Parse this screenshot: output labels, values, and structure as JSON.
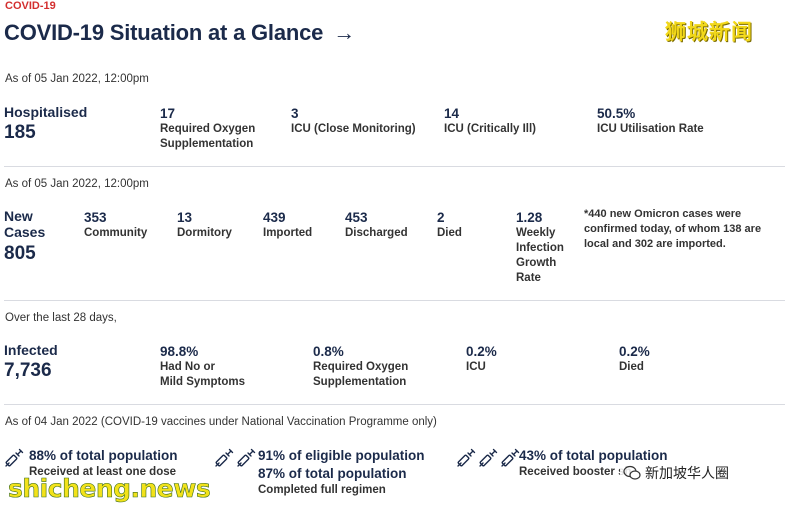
{
  "header": {
    "tag": "COVID-19",
    "title": "COVID-19 Situation at a Glance",
    "arrow": "→",
    "watermark_top": "狮城新闻"
  },
  "hospitalised": {
    "asof": "As of 05 Jan 2022, 12:00pm",
    "label": "Hospitalised",
    "total": "185",
    "stats": [
      {
        "value": "17",
        "label1": "Required Oxygen",
        "label2": "Supplementation"
      },
      {
        "value": "3",
        "label1": "ICU (Close Monitoring)",
        "label2": ""
      },
      {
        "value": "14",
        "label1": "ICU (Critically Ill)",
        "label2": ""
      },
      {
        "value": "50.5%",
        "label1": "ICU Utilisation Rate",
        "label2": ""
      }
    ]
  },
  "new_cases": {
    "asof": "As of 05 Jan 2022, 12:00pm",
    "label1": "New",
    "label2": "Cases",
    "total": "805",
    "stats": [
      {
        "value": "353",
        "label": "Community"
      },
      {
        "value": "13",
        "label": "Dormitory"
      },
      {
        "value": "439",
        "label": "Imported"
      },
      {
        "value": "453",
        "label": "Discharged"
      },
      {
        "value": "2",
        "label": "Died"
      }
    ],
    "growth": {
      "value": "1.28",
      "l1": "Weekly",
      "l2": "Infection",
      "l3": "Growth",
      "l4": "Rate"
    },
    "note": "*440 new Omicron cases were confirmed today, of whom 138 are local and 302 are imported."
  },
  "infected": {
    "asof": "Over the last 28 days,",
    "label": "Infected",
    "total": "7,736",
    "stats": [
      {
        "value": "98.8%",
        "label1": "Had No or",
        "label2": "Mild Symptoms"
      },
      {
        "value": "0.8%",
        "label1": "Required Oxygen",
        "label2": "Supplementation"
      },
      {
        "value": "0.2%",
        "label1": "ICU",
        "label2": ""
      },
      {
        "value": "0.2%",
        "label1": "Died",
        "label2": ""
      }
    ]
  },
  "vaccination": {
    "asof": "As of 04 Jan 2022 (COVID-19 vaccines under National Vaccination Programme only)",
    "items": [
      {
        "value": "88% of total population",
        "value2": "",
        "label": "Received at least one dose"
      },
      {
        "value": "91% of eligible population",
        "value2": "87% of total population",
        "label": "Completed full regimen"
      },
      {
        "value": "43% of total population",
        "value2": "",
        "label": "Received booster sh"
      }
    ]
  },
  "watermarks": {
    "bottom": "shicheng.news",
    "wechat": "新加坡华人圈"
  },
  "colors": {
    "navy": "#1b2a4a",
    "accent_red": "#d32f2f",
    "watermark_yellow": "#f2d81a"
  }
}
